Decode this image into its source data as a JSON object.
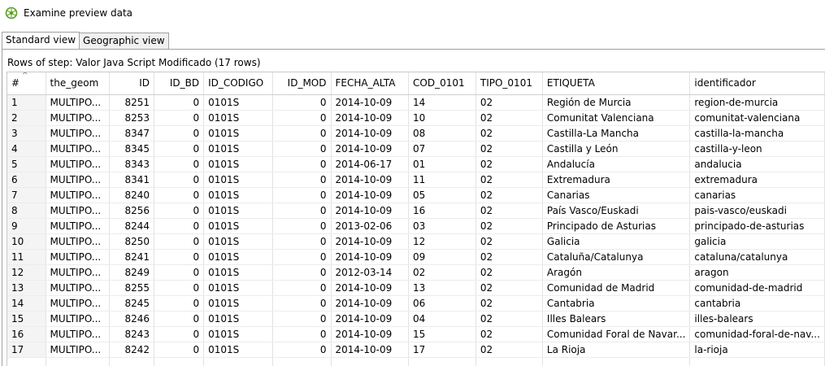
{
  "window": {
    "title": "Examine preview data",
    "icon": "kettle-preview-icon"
  },
  "tabs": [
    {
      "label": "Standard view",
      "active": true
    },
    {
      "label": "Geographic view",
      "active": false
    }
  ],
  "rows_label": "Rows of step: Valor Java Script Modificado (17 rows)",
  "table": {
    "columns": [
      "#",
      "the_geom",
      "ID",
      "ID_BD",
      "ID_CODIGO",
      "ID_MOD",
      "FECHA_ALTA",
      "COD_0101",
      "TIPO_0101",
      "ETIQUETA",
      "identificador"
    ],
    "sort_indicator": "^",
    "rows": [
      [
        "1",
        "MULTIPO...",
        "8251",
        "0",
        "0101S",
        "0",
        "2014-10-09",
        "14",
        "02",
        "Región de Murcia",
        "region-de-murcia"
      ],
      [
        "2",
        "MULTIPO...",
        "8253",
        "0",
        "0101S",
        "0",
        "2014-10-09",
        "10",
        "02",
        "Comunitat Valenciana",
        "comunitat-valenciana"
      ],
      [
        "3",
        "MULTIPO...",
        "8347",
        "0",
        "0101S",
        "0",
        "2014-10-09",
        "08",
        "02",
        "Castilla-La Mancha",
        "castilla-la-mancha"
      ],
      [
        "4",
        "MULTIPO...",
        "8345",
        "0",
        "0101S",
        "0",
        "2014-10-09",
        "07",
        "02",
        "Castilla y León",
        "castilla-y-leon"
      ],
      [
        "5",
        "MULTIPO...",
        "8343",
        "0",
        "0101S",
        "0",
        "2014-06-17",
        "01",
        "02",
        "Andalucía",
        "andalucia"
      ],
      [
        "6",
        "MULTIPO...",
        "8341",
        "0",
        "0101S",
        "0",
        "2014-10-09",
        "11",
        "02",
        "Extremadura",
        "extremadura"
      ],
      [
        "7",
        "MULTIPO...",
        "8240",
        "0",
        "0101S",
        "0",
        "2014-10-09",
        "05",
        "02",
        "Canarias",
        "canarias"
      ],
      [
        "8",
        "MULTIPO...",
        "8256",
        "0",
        "0101S",
        "0",
        "2014-10-09",
        "16",
        "02",
        "País Vasco/Euskadi",
        "pais-vasco/euskadi"
      ],
      [
        "9",
        "MULTIPO...",
        "8244",
        "0",
        "0101S",
        "0",
        "2013-02-06",
        "03",
        "02",
        "Principado de Asturias",
        "principado-de-asturias"
      ],
      [
        "10",
        "MULTIPO...",
        "8250",
        "0",
        "0101S",
        "0",
        "2014-10-09",
        "12",
        "02",
        "Galicia",
        "galicia"
      ],
      [
        "11",
        "MULTIPO...",
        "8241",
        "0",
        "0101S",
        "0",
        "2014-10-09",
        "09",
        "02",
        "Cataluña/Catalunya",
        "cataluna/catalunya"
      ],
      [
        "12",
        "MULTIPO...",
        "8249",
        "0",
        "0101S",
        "0",
        "2012-03-14",
        "02",
        "02",
        "Aragón",
        "aragon"
      ],
      [
        "13",
        "MULTIPO...",
        "8255",
        "0",
        "0101S",
        "0",
        "2014-10-09",
        "13",
        "02",
        "Comunidad de Madrid",
        "comunidad-de-madrid"
      ],
      [
        "14",
        "MULTIPO...",
        "8245",
        "0",
        "0101S",
        "0",
        "2014-10-09",
        "06",
        "02",
        "Cantabria",
        "cantabria"
      ],
      [
        "15",
        "MULTIPO...",
        "8246",
        "0",
        "0101S",
        "0",
        "2014-10-09",
        "04",
        "02",
        "Illes Balears",
        "illes-balears"
      ],
      [
        "16",
        "MULTIPO...",
        "8243",
        "0",
        "0101S",
        "0",
        "2014-10-09",
        "15",
        "02",
        "Comunidad Foral de Navar...",
        "comunidad-foral-de-nav..."
      ],
      [
        "17",
        "MULTIPO...",
        "8242",
        "0",
        "0101S",
        "0",
        "2014-10-09",
        "17",
        "02",
        "La Rioja",
        "la-rioja"
      ]
    ]
  },
  "colors": {
    "border": "#a0a0a0",
    "tab_inactive": "#f0f0f0",
    "rownum_bg": "#f4f4f4",
    "icon_green": "#5a9a2a"
  }
}
